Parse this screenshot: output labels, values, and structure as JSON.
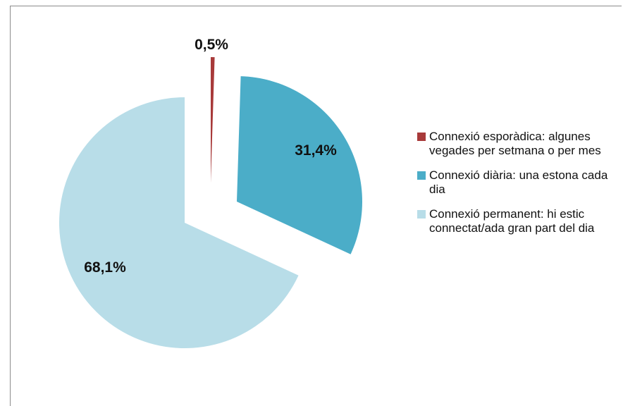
{
  "chart_data": {
    "type": "pie",
    "slices": [
      {
        "label": "Connexió esporàdica: algunes vegades per setmana o per mes",
        "value": 0.5,
        "display": "0,5%",
        "color": "#a83a3a"
      },
      {
        "label": "Connexió diària: una estona cada dia",
        "value": 31.4,
        "display": "31,4%",
        "color": "#4badc8"
      },
      {
        "label": "Connexió permanent: hi estic connectat/ada gran part del dia",
        "value": 68.1,
        "display": "68,1%",
        "color": "#b8dde8"
      }
    ],
    "exploded": true,
    "legend": "right"
  }
}
